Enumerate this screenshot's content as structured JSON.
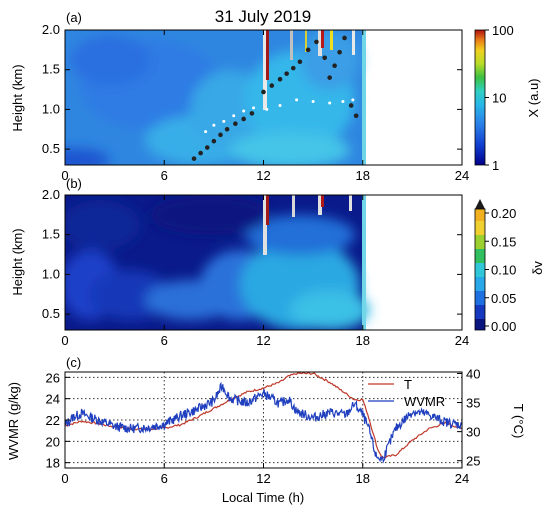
{
  "figure": {
    "title": "31 July 2019"
  },
  "chart_data": [
    {
      "panel": "(a)",
      "type": "heatmap",
      "ylabel": "Height (km)",
      "xlim": [
        0,
        24
      ],
      "ylim": [
        0.3,
        2.0
      ],
      "xticks": [
        "0",
        "6",
        "12",
        "18",
        "24"
      ],
      "yticks": [
        "0.5",
        "1.0",
        "1.5",
        "2.0"
      ],
      "colorbar": {
        "label": "X (a.u)",
        "scale": "log",
        "range": [
          1,
          100
        ],
        "ticks": [
          "1",
          "10",
          "100"
        ]
      },
      "data_extent_hours": [
        0,
        18
      ],
      "markers": {
        "black": [
          [
            7.8,
            0.38
          ],
          [
            8.2,
            0.45
          ],
          [
            8.6,
            0.52
          ],
          [
            9.0,
            0.6
          ],
          [
            9.4,
            0.68
          ],
          [
            9.8,
            0.75
          ],
          [
            10.3,
            0.82
          ],
          [
            10.8,
            0.88
          ],
          [
            11.3,
            0.95
          ],
          [
            12.0,
            1.22
          ],
          [
            12.5,
            1.3
          ],
          [
            13.0,
            1.38
          ],
          [
            13.4,
            1.45
          ],
          [
            13.8,
            1.52
          ],
          [
            14.2,
            1.6
          ],
          [
            14.7,
            1.75
          ],
          [
            15.2,
            1.85
          ],
          [
            15.7,
            1.65
          ],
          [
            16.0,
            1.4
          ],
          [
            16.3,
            1.55
          ],
          [
            16.6,
            1.72
          ],
          [
            16.9,
            1.9
          ],
          [
            17.3,
            1.05
          ],
          [
            17.6,
            0.92
          ]
        ],
        "white": [
          [
            8.5,
            0.72
          ],
          [
            9.0,
            0.8
          ],
          [
            9.6,
            0.85
          ],
          [
            10.2,
            0.92
          ],
          [
            10.8,
            0.98
          ],
          [
            11.4,
            1.02
          ],
          [
            12.2,
            1.0
          ],
          [
            13.0,
            1.05
          ],
          [
            14.0,
            1.12
          ],
          [
            15.0,
            1.1
          ],
          [
            16.0,
            1.08
          ],
          [
            16.8,
            1.1
          ],
          [
            17.4,
            1.12
          ]
        ]
      }
    },
    {
      "panel": "(b)",
      "type": "heatmap",
      "ylabel": "Height (km)",
      "xlim": [
        0,
        24
      ],
      "ylim": [
        0.3,
        2.0
      ],
      "xticks": [
        "0",
        "6",
        "12",
        "18",
        "24"
      ],
      "yticks": [
        "0.5",
        "1.0",
        "1.5",
        "2.0"
      ],
      "colorbar": {
        "label": "δv",
        "range": [
          0.0,
          0.2
        ],
        "ticks": [
          "0.00",
          "0.05",
          "0.10",
          "0.15",
          "0.20"
        ]
      },
      "data_extent_hours": [
        0,
        18
      ]
    },
    {
      "panel": "(c)",
      "type": "line",
      "xlabel": "Local Time (h)",
      "ylabel_left": "WVMR (g/kg)",
      "ylabel_right": "T (°C)",
      "xlim": [
        0,
        24
      ],
      "ylim_left": [
        17.5,
        26.5
      ],
      "ylim_right": [
        23.75,
        40.25
      ],
      "xticks": [
        "0",
        "6",
        "12",
        "18",
        "24"
      ],
      "yticks_left": [
        "18",
        "20",
        "22",
        "24",
        "26"
      ],
      "yticks_right": [
        "25",
        "30",
        "35",
        "40"
      ],
      "legend": [
        "T",
        "WVMR"
      ],
      "series": [
        {
          "name": "T",
          "axis": "right",
          "color": "#c0392b",
          "x": [
            0,
            1,
            2,
            3,
            4,
            5,
            6,
            7,
            8,
            9,
            10,
            11,
            12,
            13,
            13.5,
            14,
            15,
            16,
            17,
            17.5,
            18,
            18.3,
            18.6,
            18.9,
            19.2,
            20,
            21,
            22,
            23,
            24
          ],
          "y": [
            31,
            31.8,
            31.4,
            30.8,
            30.5,
            30.4,
            30.6,
            31.2,
            32.5,
            34,
            35.5,
            36.8,
            37.5,
            38.5,
            39.5,
            40,
            40,
            38.5,
            36.5,
            35.5,
            35.5,
            33,
            30,
            27,
            25.5,
            26,
            28.5,
            30.5,
            31.5,
            30.5
          ]
        },
        {
          "name": "WVMR",
          "axis": "left",
          "color": "#1f3fbf",
          "x": [
            0,
            0.5,
            1,
            2,
            3,
            4,
            5,
            6,
            7,
            8,
            9,
            9.5,
            10,
            11,
            12,
            12.5,
            13,
            13.5,
            14,
            15,
            16,
            17,
            17.5,
            18,
            18.4,
            18.8,
            19.2,
            20,
            21,
            22,
            23,
            24
          ],
          "y": [
            21.5,
            22.3,
            22.6,
            22,
            21.4,
            21.2,
            21.3,
            21.6,
            22.4,
            23,
            23.8,
            25.2,
            24,
            23.6,
            24.5,
            24,
            23.5,
            24,
            22.8,
            22.2,
            22.7,
            22.5,
            23.5,
            22.5,
            21,
            18.6,
            18.3,
            21.2,
            22.8,
            22.5,
            21.8,
            21.5
          ]
        }
      ]
    }
  ]
}
